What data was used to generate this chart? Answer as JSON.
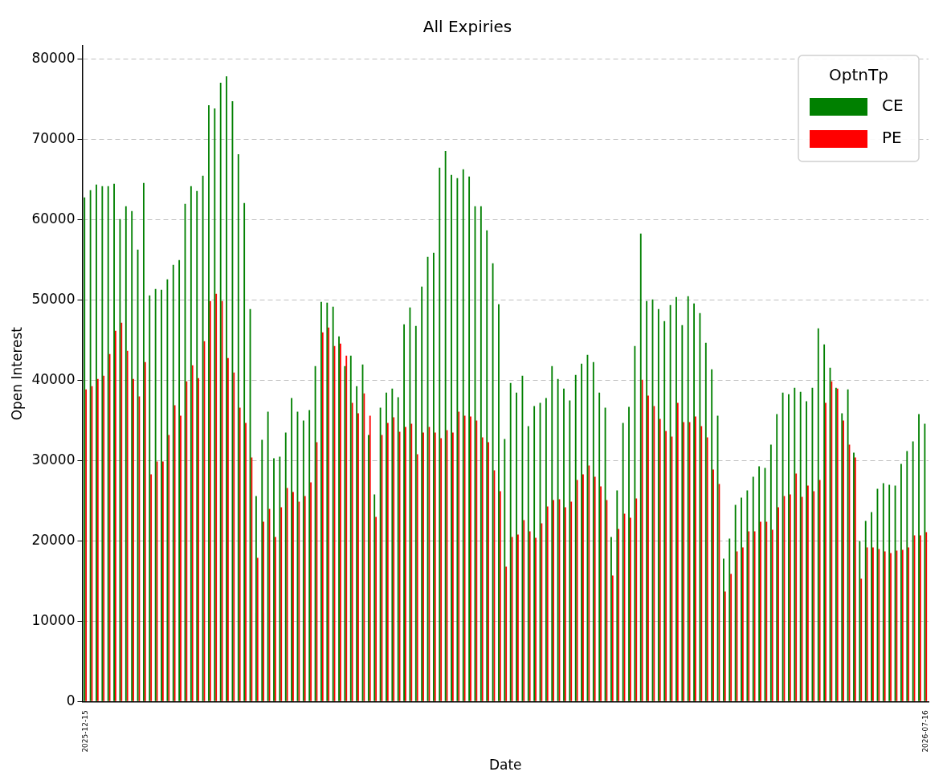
{
  "chart_data": {
    "type": "bar",
    "title": "All Expiries",
    "xlabel": "Date",
    "ylabel": "Open Interest",
    "legend_title": "OptnTp",
    "categories": [
      "2025-12-15",
      null,
      null,
      null,
      null,
      null,
      null,
      null,
      null,
      null,
      null,
      null,
      null,
      null,
      null,
      null,
      null,
      null,
      null,
      null,
      null,
      null,
      null,
      null,
      null,
      null,
      null,
      null,
      null,
      null,
      null,
      null,
      null,
      null,
      null,
      null,
      null,
      null,
      null,
      null,
      null,
      null,
      null,
      null,
      null,
      null,
      null,
      null,
      null,
      null,
      null,
      null,
      null,
      null,
      null,
      null,
      null,
      null,
      null,
      null,
      null,
      null,
      null,
      null,
      null,
      null,
      null,
      null,
      null,
      null,
      null,
      null,
      null,
      null,
      null,
      null,
      null,
      null,
      null,
      null,
      null,
      null,
      null,
      null,
      null,
      null,
      null,
      null,
      null,
      null,
      null,
      null,
      null,
      null,
      null,
      null,
      null,
      null,
      null,
      null,
      null,
      null,
      null,
      null,
      null,
      null,
      null,
      null,
      null,
      null,
      null,
      null,
      null,
      null,
      null,
      null,
      null,
      null,
      null,
      null,
      null,
      null,
      null,
      null,
      null,
      null,
      null,
      null,
      null,
      null,
      null,
      null,
      null,
      null,
      null,
      null,
      null,
      null,
      null,
      null,
      null,
      null,
      "2026-07-16"
    ],
    "series": [
      {
        "name": "CE",
        "color": "#008000",
        "values": [
          62800,
          63700,
          64400,
          64200,
          64200,
          64500,
          60100,
          61700,
          61100,
          56300,
          64600,
          50600,
          51400,
          51300,
          52600,
          54400,
          55000,
          62000,
          64200,
          63600,
          65500,
          74300,
          73900,
          77100,
          77900,
          74800,
          68200,
          62100,
          48900,
          25600,
          32600,
          36100,
          30300,
          30500,
          33500,
          37800,
          36100,
          35000,
          36300,
          41800,
          49800,
          49700,
          49200,
          45500,
          41800,
          43100,
          39300,
          42000,
          33200,
          25800,
          36600,
          38500,
          39000,
          37900,
          47000,
          49100,
          46800,
          51700,
          55400,
          55900,
          66500,
          68600,
          65600,
          65200,
          66300,
          65400,
          61700,
          61700,
          58700,
          54600,
          49500,
          32700,
          39700,
          38500,
          40600,
          34300,
          36800,
          37200,
          37800,
          41800,
          40200,
          39000,
          37500,
          40700,
          42100,
          43200,
          42300,
          38500,
          36600,
          20500,
          26300,
          34700,
          36700,
          44300,
          58300,
          49900,
          50100,
          48900,
          47400,
          49400,
          50400,
          46900,
          50500,
          49600,
          48400,
          44700,
          41400,
          35600,
          17800,
          20300,
          24500,
          25400,
          26300,
          28000,
          29300,
          29100,
          32000,
          35800,
          38500,
          38300,
          39100,
          38600,
          37400,
          39100,
          46500,
          44500,
          41600,
          39100,
          35900,
          38900,
          31000,
          20000,
          22500,
          23600,
          26500,
          27200,
          27000,
          26900,
          29600,
          31200,
          32400,
          35800,
          34600
        ]
      },
      {
        "name": "PE",
        "color": "#ff0000",
        "values": [
          38900,
          39300,
          40200,
          40600,
          43300,
          46200,
          47200,
          43700,
          40200,
          38000,
          42300,
          28300,
          29900,
          29900,
          33200,
          36900,
          35600,
          39900,
          41900,
          40300,
          44900,
          49900,
          50800,
          49900,
          42800,
          41000,
          36600,
          34700,
          30400,
          17900,
          22400,
          24000,
          20500,
          24200,
          26600,
          26100,
          24900,
          25600,
          27300,
          32300,
          46000,
          46600,
          44300,
          44600,
          43100,
          37200,
          35900,
          38400,
          35600,
          23000,
          33200,
          34700,
          35400,
          33600,
          34200,
          34600,
          30800,
          33500,
          34200,
          33500,
          32800,
          33800,
          33500,
          36100,
          35600,
          35500,
          35000,
          32900,
          32300,
          28800,
          26200,
          16800,
          20500,
          20800,
          22600,
          21200,
          20400,
          22200,
          24300,
          25100,
          25200,
          24200,
          24900,
          27600,
          28300,
          29400,
          28000,
          26800,
          25100,
          15700,
          21500,
          23400,
          22900,
          25300,
          40100,
          38100,
          36800,
          35200,
          33700,
          33000,
          37200,
          34800,
          34800,
          35500,
          34300,
          32900,
          28900,
          27100,
          13700,
          15900,
          18700,
          19200,
          21200,
          21200,
          22400,
          22400,
          21400,
          24200,
          25600,
          25800,
          28400,
          25500,
          26900,
          26200,
          27600,
          37200,
          39900,
          39000,
          35000,
          32000,
          30400,
          15300,
          19200,
          19200,
          19000,
          18700,
          18500,
          18800,
          18900,
          19200,
          20700,
          20700,
          21100
        ]
      }
    ],
    "ylim": [
      0,
      81700
    ],
    "yticks": [
      0,
      10000,
      20000,
      30000,
      40000,
      50000,
      60000,
      70000,
      80000
    ],
    "grid": "y",
    "legend": "top right"
  }
}
